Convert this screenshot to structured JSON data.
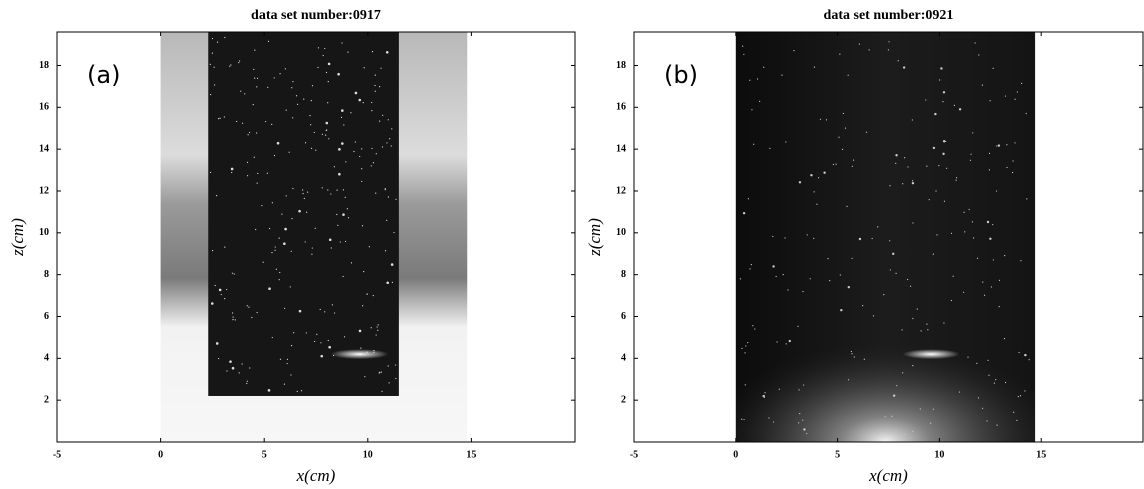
{
  "chart_data": [
    {
      "type": "image",
      "title": "data set number:0917",
      "annotation": "(a)",
      "xlabel": "x(cm)",
      "ylabel": "z(cm)",
      "xlim": [
        -5,
        20
      ],
      "ylim": [
        0,
        19.6
      ],
      "xticks": [
        -5,
        0,
        5,
        10,
        15
      ],
      "yticks": [
        2,
        4,
        6,
        8,
        10,
        12,
        14,
        16,
        18
      ]
    },
    {
      "type": "image",
      "title": "data set number:0921",
      "annotation": "(b)",
      "xlabel": "x(cm)",
      "ylabel": "z(cm)",
      "xlim": [
        -5,
        20
      ],
      "ylim": [
        0,
        19.6
      ],
      "xticks": [
        -5,
        0,
        5,
        10,
        15
      ],
      "yticks": [
        2,
        4,
        6,
        8,
        10,
        12,
        14,
        16,
        18
      ]
    }
  ]
}
